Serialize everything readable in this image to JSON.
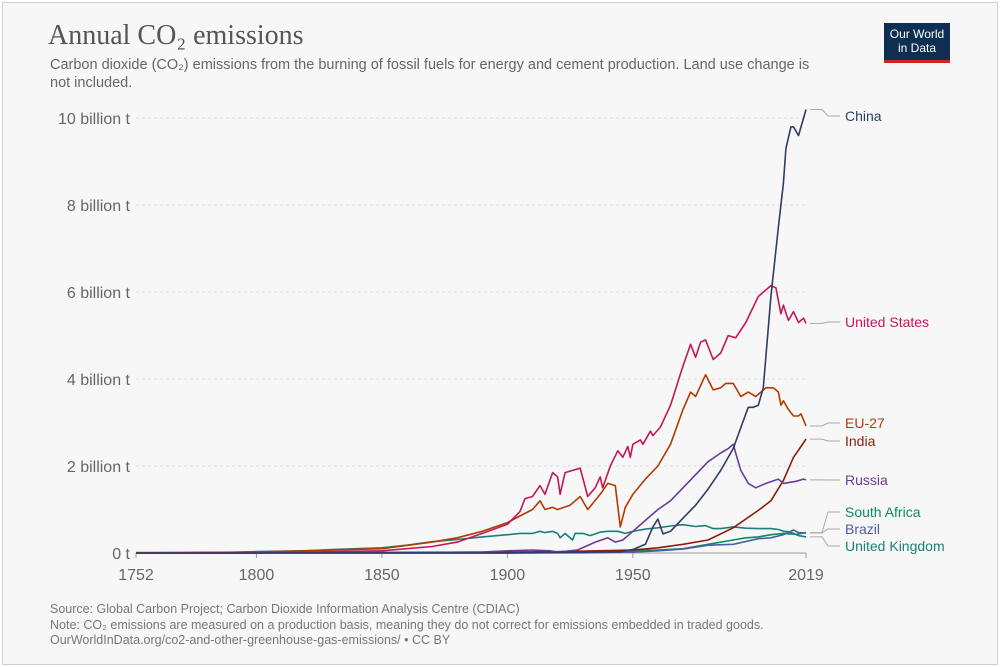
{
  "header": {
    "title": "Annual CO₂ emissions",
    "subtitle": "Carbon dioxide (CO₂) emissions from the burning of fossil fuels for energy and cement production. Land use change is not included.",
    "logo_line1": "Our World",
    "logo_line2": "in Data"
  },
  "footer": {
    "source": "Source: Global Carbon Project; Carbon Dioxide Information Analysis Centre (CDIAC)",
    "note": "Note: CO₂ emissions are measured on a production basis, meaning they do not correct for emissions embedded in traded goods.",
    "url": "OurWorldInData.org/co2-and-other-greenhouse-gas-emissions/ • CC BY"
  },
  "chart_data": {
    "type": "line",
    "title": "Annual CO₂ emissions",
    "xlabel": "",
    "ylabel": "",
    "xlim": [
      1752,
      2019
    ],
    "ylim": [
      0,
      10.4
    ],
    "unit": "billion t",
    "x_ticks": [
      1752,
      1800,
      1850,
      1900,
      1950,
      2019
    ],
    "x_tick_labels": [
      "1752",
      "1800",
      "1850",
      "1900",
      "1950",
      "2019"
    ],
    "y_ticks": [
      0,
      2,
      4,
      6,
      8,
      10
    ],
    "y_tick_labels": [
      "0 t",
      "2 billion t",
      "4 billion t",
      "6 billion t",
      "8 billion t",
      "10 billion t"
    ],
    "grid": "horizontal dashed",
    "legend": "right (line labels)",
    "series": [
      {
        "name": "China",
        "color": "#2c3e63",
        "points": [
          [
            1752,
            0
          ],
          [
            1900,
            0.001
          ],
          [
            1930,
            0.02
          ],
          [
            1945,
            0.03
          ],
          [
            1950,
            0.08
          ],
          [
            1955,
            0.2
          ],
          [
            1958,
            0.6
          ],
          [
            1960,
            0.78
          ],
          [
            1962,
            0.44
          ],
          [
            1965,
            0.5
          ],
          [
            1970,
            0.8
          ],
          [
            1975,
            1.1
          ],
          [
            1980,
            1.47
          ],
          [
            1985,
            1.9
          ],
          [
            1990,
            2.4
          ],
          [
            1995,
            3.2
          ],
          [
            1996,
            3.35
          ],
          [
            1998,
            3.35
          ],
          [
            2000,
            3.4
          ],
          [
            2002,
            3.8
          ],
          [
            2005,
            5.9
          ],
          [
            2008,
            7.5
          ],
          [
            2010,
            8.5
          ],
          [
            2011,
            9.3
          ],
          [
            2013,
            9.8
          ],
          [
            2014,
            9.8
          ],
          [
            2015,
            9.7
          ],
          [
            2016,
            9.6
          ],
          [
            2017,
            9.8
          ],
          [
            2019,
            10.2
          ]
        ]
      },
      {
        "name": "United States",
        "color": "#c2185b",
        "points": [
          [
            1752,
            0
          ],
          [
            1800,
            0.003
          ],
          [
            1850,
            0.05
          ],
          [
            1870,
            0.15
          ],
          [
            1880,
            0.25
          ],
          [
            1890,
            0.45
          ],
          [
            1900,
            0.66
          ],
          [
            1905,
            0.95
          ],
          [
            1907,
            1.25
          ],
          [
            1910,
            1.3
          ],
          [
            1913,
            1.55
          ],
          [
            1915,
            1.35
          ],
          [
            1918,
            1.85
          ],
          [
            1920,
            1.75
          ],
          [
            1921,
            1.35
          ],
          [
            1923,
            1.85
          ],
          [
            1926,
            1.9
          ],
          [
            1929,
            1.95
          ],
          [
            1932,
            1.3
          ],
          [
            1935,
            1.5
          ],
          [
            1937,
            1.75
          ],
          [
            1938,
            1.5
          ],
          [
            1941,
            2.0
          ],
          [
            1944,
            2.35
          ],
          [
            1946,
            2.2
          ],
          [
            1948,
            2.45
          ],
          [
            1949,
            2.2
          ],
          [
            1950,
            2.5
          ],
          [
            1953,
            2.6
          ],
          [
            1954,
            2.5
          ],
          [
            1957,
            2.8
          ],
          [
            1958,
            2.7
          ],
          [
            1961,
            2.9
          ],
          [
            1965,
            3.4
          ],
          [
            1970,
            4.3
          ],
          [
            1973,
            4.8
          ],
          [
            1975,
            4.5
          ],
          [
            1977,
            4.85
          ],
          [
            1979,
            4.9
          ],
          [
            1982,
            4.45
          ],
          [
            1985,
            4.6
          ],
          [
            1988,
            5.0
          ],
          [
            1991,
            4.95
          ],
          [
            1995,
            5.3
          ],
          [
            2000,
            5.9
          ],
          [
            2005,
            6.15
          ],
          [
            2007,
            6.1
          ],
          [
            2009,
            5.5
          ],
          [
            2010,
            5.7
          ],
          [
            2012,
            5.35
          ],
          [
            2014,
            5.55
          ],
          [
            2016,
            5.3
          ],
          [
            2018,
            5.4
          ],
          [
            2019,
            5.28
          ]
        ]
      },
      {
        "name": "EU-27",
        "color": "#b23b00",
        "points": [
          [
            1752,
            0.003
          ],
          [
            1800,
            0.02
          ],
          [
            1850,
            0.1
          ],
          [
            1870,
            0.25
          ],
          [
            1880,
            0.35
          ],
          [
            1890,
            0.5
          ],
          [
            1900,
            0.7
          ],
          [
            1905,
            0.85
          ],
          [
            1910,
            1.0
          ],
          [
            1913,
            1.2
          ],
          [
            1915,
            1.0
          ],
          [
            1918,
            1.05
          ],
          [
            1920,
            1.0
          ],
          [
            1925,
            1.1
          ],
          [
            1929,
            1.3
          ],
          [
            1932,
            1.0
          ],
          [
            1937,
            1.35
          ],
          [
            1940,
            1.6
          ],
          [
            1943,
            1.55
          ],
          [
            1945,
            0.6
          ],
          [
            1947,
            1.05
          ],
          [
            1950,
            1.35
          ],
          [
            1955,
            1.7
          ],
          [
            1960,
            2.0
          ],
          [
            1965,
            2.5
          ],
          [
            1970,
            3.3
          ],
          [
            1973,
            3.7
          ],
          [
            1975,
            3.6
          ],
          [
            1979,
            4.1
          ],
          [
            1982,
            3.75
          ],
          [
            1985,
            3.8
          ],
          [
            1987,
            3.9
          ],
          [
            1990,
            3.9
          ],
          [
            1993,
            3.6
          ],
          [
            1996,
            3.7
          ],
          [
            1999,
            3.6
          ],
          [
            2003,
            3.8
          ],
          [
            2006,
            3.8
          ],
          [
            2008,
            3.7
          ],
          [
            2009,
            3.4
          ],
          [
            2010,
            3.5
          ],
          [
            2012,
            3.3
          ],
          [
            2014,
            3.15
          ],
          [
            2016,
            3.15
          ],
          [
            2017,
            3.2
          ],
          [
            2019,
            2.92
          ]
        ]
      },
      {
        "name": "India",
        "color": "#8b1d0a",
        "points": [
          [
            1752,
            0
          ],
          [
            1900,
            0.02
          ],
          [
            1920,
            0.03
          ],
          [
            1950,
            0.07
          ],
          [
            1960,
            0.12
          ],
          [
            1970,
            0.2
          ],
          [
            1980,
            0.3
          ],
          [
            1990,
            0.58
          ],
          [
            2000,
            0.98
          ],
          [
            2005,
            1.2
          ],
          [
            2010,
            1.67
          ],
          [
            2014,
            2.2
          ],
          [
            2017,
            2.45
          ],
          [
            2019,
            2.62
          ]
        ]
      },
      {
        "name": "Russia",
        "color": "#6a3d9a",
        "points": [
          [
            1752,
            0
          ],
          [
            1850,
            0.002
          ],
          [
            1890,
            0.02
          ],
          [
            1900,
            0.05
          ],
          [
            1910,
            0.07
          ],
          [
            1917,
            0.05
          ],
          [
            1920,
            0.02
          ],
          [
            1928,
            0.07
          ],
          [
            1935,
            0.25
          ],
          [
            1940,
            0.35
          ],
          [
            1943,
            0.25
          ],
          [
            1946,
            0.3
          ],
          [
            1950,
            0.5
          ],
          [
            1955,
            0.75
          ],
          [
            1960,
            1.0
          ],
          [
            1965,
            1.2
          ],
          [
            1970,
            1.5
          ],
          [
            1975,
            1.8
          ],
          [
            1980,
            2.1
          ],
          [
            1985,
            2.3
          ],
          [
            1988,
            2.4
          ],
          [
            1990,
            2.5
          ],
          [
            1991,
            2.3
          ],
          [
            1993,
            1.9
          ],
          [
            1996,
            1.6
          ],
          [
            1999,
            1.5
          ],
          [
            2003,
            1.6
          ],
          [
            2008,
            1.7
          ],
          [
            2010,
            1.6
          ],
          [
            2015,
            1.65
          ],
          [
            2018,
            1.7
          ],
          [
            2019,
            1.68
          ]
        ]
      },
      {
        "name": "South Africa",
        "color": "#0f8b5d",
        "points": [
          [
            1752,
            0
          ],
          [
            1900,
            0.003
          ],
          [
            1920,
            0.01
          ],
          [
            1950,
            0.05
          ],
          [
            1960,
            0.07
          ],
          [
            1970,
            0.1
          ],
          [
            1980,
            0.2
          ],
          [
            1990,
            0.3
          ],
          [
            1995,
            0.35
          ],
          [
            2000,
            0.37
          ],
          [
            2005,
            0.42
          ],
          [
            2010,
            0.45
          ],
          [
            2015,
            0.43
          ],
          [
            2019,
            0.47
          ]
        ]
      },
      {
        "name": "Brazil",
        "color": "#4a5fa8",
        "points": [
          [
            1752,
            0
          ],
          [
            1900,
            0.002
          ],
          [
            1930,
            0.005
          ],
          [
            1950,
            0.02
          ],
          [
            1960,
            0.05
          ],
          [
            1970,
            0.09
          ],
          [
            1980,
            0.18
          ],
          [
            1990,
            0.2
          ],
          [
            2000,
            0.33
          ],
          [
            2005,
            0.35
          ],
          [
            2010,
            0.42
          ],
          [
            2014,
            0.53
          ],
          [
            2016,
            0.47
          ],
          [
            2019,
            0.46
          ]
        ]
      },
      {
        "name": "United Kingdom",
        "color": "#1b7f7a",
        "points": [
          [
            1752,
            0.009
          ],
          [
            1770,
            0.01
          ],
          [
            1790,
            0.017
          ],
          [
            1800,
            0.033
          ],
          [
            1820,
            0.05
          ],
          [
            1830,
            0.08
          ],
          [
            1840,
            0.1
          ],
          [
            1850,
            0.12
          ],
          [
            1860,
            0.18
          ],
          [
            1870,
            0.26
          ],
          [
            1880,
            0.31
          ],
          [
            1890,
            0.37
          ],
          [
            1900,
            0.42
          ],
          [
            1905,
            0.45
          ],
          [
            1910,
            0.45
          ],
          [
            1913,
            0.5
          ],
          [
            1915,
            0.47
          ],
          [
            1918,
            0.5
          ],
          [
            1920,
            0.45
          ],
          [
            1921,
            0.35
          ],
          [
            1923,
            0.45
          ],
          [
            1926,
            0.3
          ],
          [
            1927,
            0.45
          ],
          [
            1930,
            0.45
          ],
          [
            1933,
            0.4
          ],
          [
            1937,
            0.48
          ],
          [
            1940,
            0.5
          ],
          [
            1944,
            0.5
          ],
          [
            1947,
            0.45
          ],
          [
            1950,
            0.5
          ],
          [
            1955,
            0.55
          ],
          [
            1960,
            0.58
          ],
          [
            1965,
            0.62
          ],
          [
            1970,
            0.65
          ],
          [
            1975,
            0.61
          ],
          [
            1979,
            0.63
          ],
          [
            1982,
            0.56
          ],
          [
            1985,
            0.56
          ],
          [
            1990,
            0.6
          ],
          [
            1995,
            0.57
          ],
          [
            2000,
            0.56
          ],
          [
            2005,
            0.56
          ],
          [
            2008,
            0.54
          ],
          [
            2010,
            0.5
          ],
          [
            2012,
            0.49
          ],
          [
            2014,
            0.45
          ],
          [
            2016,
            0.4
          ],
          [
            2019,
            0.37
          ]
        ]
      }
    ],
    "label_order": [
      "China",
      "United States",
      "EU-27",
      "India",
      "Russia",
      "South Africa",
      "Brazil",
      "United Kingdom"
    ]
  }
}
